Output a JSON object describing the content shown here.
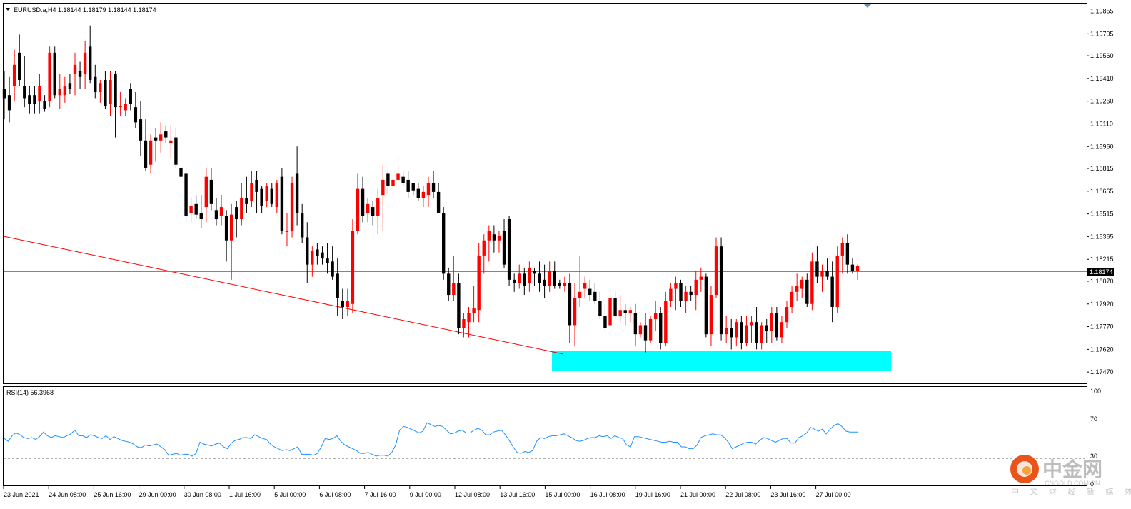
{
  "chart_data": {
    "type": "candlestick",
    "symbol_header": "EURUSD.a,H4  1.18144 1.18179 1.18144 1.18174",
    "current_price": "1.18174",
    "ylim": [
      1.174,
      1.199
    ],
    "y_ticks": [
      "1.19855",
      "1.19705",
      "1.19560",
      "1.19410",
      "1.19260",
      "1.19110",
      "1.18960",
      "1.18815",
      "1.18665",
      "1.18515",
      "1.18365",
      "1.18215",
      "1.18070",
      "1.17920",
      "1.17770",
      "1.17620",
      "1.17470"
    ],
    "x_ticks": [
      "23 Jun 2021",
      "24 Jun 08:00",
      "25 Jun 16:00",
      "29 Jun 00:00",
      "30 Jun 08:00",
      "1 Jul 16:00",
      "5 Jul 00:00",
      "6 Jul 08:00",
      "7 Jul 16:00",
      "9 Jul 00:00",
      "12 Jul 08:00",
      "13 Jul 16:00",
      "15 Jul 00:00",
      "16 Jul 08:00",
      "19 Jul 16:00",
      "21 Jul 00:00",
      "22 Jul 08:00",
      "23 Jul 16:00",
      "27 Jul 00:00"
    ],
    "colors": {
      "bull": "#ff0000",
      "bear": "#000000",
      "trendline": "#ff0000",
      "support_zone": "#00ffff",
      "rsi_line": "#1e90ff",
      "price_line": "#778899"
    },
    "candles": [
      [
        1.1934,
        1.1946,
        1.1914,
        1.1928
      ],
      [
        1.193,
        1.1942,
        1.1912,
        1.192
      ],
      [
        1.1936,
        1.196,
        1.1926,
        1.195
      ],
      [
        1.1958,
        1.197,
        1.1936,
        1.194
      ],
      [
        1.1936,
        1.1956,
        1.1922,
        1.1928
      ],
      [
        1.193,
        1.1936,
        1.1918,
        1.1924
      ],
      [
        1.193,
        1.1936,
        1.1918,
        1.1924
      ],
      [
        1.1926,
        1.1944,
        1.1918,
        1.1936
      ],
      [
        1.1926,
        1.193,
        1.1919,
        1.1921
      ],
      [
        1.1926,
        1.1962,
        1.1922,
        1.1958
      ],
      [
        1.1958,
        1.1962,
        1.1928,
        1.193
      ],
      [
        1.193,
        1.1944,
        1.1921,
        1.1934
      ],
      [
        1.193,
        1.1942,
        1.1925,
        1.1936
      ],
      [
        1.1938,
        1.1944,
        1.1931,
        1.1934
      ],
      [
        1.1944,
        1.1958,
        1.193,
        1.195
      ],
      [
        1.1946,
        1.1952,
        1.1934,
        1.1942
      ],
      [
        1.1944,
        1.1966,
        1.1934,
        1.1958
      ],
      [
        1.1962,
        1.1976,
        1.1938,
        1.194
      ],
      [
        1.1942,
        1.195,
        1.1928,
        1.1932
      ],
      [
        1.1932,
        1.194,
        1.1925,
        1.1938
      ],
      [
        1.194,
        1.1946,
        1.1921,
        1.1923
      ],
      [
        1.1924,
        1.1946,
        1.1916,
        1.194
      ],
      [
        1.1944,
        1.1946,
        1.1902,
        1.1922
      ],
      [
        1.1922,
        1.1932,
        1.1916,
        1.1923
      ],
      [
        1.192,
        1.1928,
        1.1916,
        1.1924
      ],
      [
        1.1934,
        1.1938,
        1.192,
        1.1924
      ],
      [
        1.1922,
        1.1932,
        1.1908,
        1.1912
      ],
      [
        1.1914,
        1.1926,
        1.189,
        1.19
      ],
      [
        1.19,
        1.1914,
        1.188,
        1.1882
      ],
      [
        1.1884,
        1.1904,
        1.1878,
        1.19
      ],
      [
        1.1902,
        1.1908,
        1.1886,
        1.19
      ],
      [
        1.19,
        1.1912,
        1.1892,
        1.1904
      ],
      [
        1.1906,
        1.191,
        1.1898,
        1.1902
      ],
      [
        1.1898,
        1.191,
        1.1888,
        1.19
      ],
      [
        1.1902,
        1.1908,
        1.1882,
        1.1884
      ],
      [
        1.1882,
        1.1888,
        1.1872,
        1.1876
      ],
      [
        1.1878,
        1.1882,
        1.1846,
        1.185
      ],
      [
        1.1852,
        1.1862,
        1.1846,
        1.1857
      ],
      [
        1.1858,
        1.1864,
        1.1848,
        1.1851
      ],
      [
        1.1852,
        1.1864,
        1.1842,
        1.1848
      ],
      [
        1.1856,
        1.1882,
        1.1846,
        1.1876
      ],
      [
        1.1874,
        1.1882,
        1.1854,
        1.1858
      ],
      [
        1.1854,
        1.1862,
        1.1844,
        1.1848
      ],
      [
        1.185,
        1.1864,
        1.1844,
        1.1856
      ],
      [
        1.185,
        1.1854,
        1.182,
        1.1834
      ],
      [
        1.1834,
        1.1858,
        1.1808,
        1.1851
      ],
      [
        1.1856,
        1.186,
        1.1836,
        1.1848
      ],
      [
        1.1848,
        1.1872,
        1.1844,
        1.1862
      ],
      [
        1.1862,
        1.1876,
        1.1852,
        1.1858
      ],
      [
        1.186,
        1.188,
        1.1856,
        1.1872
      ],
      [
        1.1874,
        1.188,
        1.1852,
        1.1866
      ],
      [
        1.1868,
        1.187,
        1.1852,
        1.1857
      ],
      [
        1.186,
        1.1872,
        1.1856,
        1.187
      ],
      [
        1.1868,
        1.1872,
        1.1856,
        1.1858
      ],
      [
        1.1856,
        1.1874,
        1.1852,
        1.1872
      ],
      [
        1.1876,
        1.1882,
        1.1838,
        1.184
      ],
      [
        1.184,
        1.1852,
        1.183,
        1.184
      ],
      [
        1.184,
        1.1876,
        1.1836,
        1.1872
      ],
      [
        1.1878,
        1.1896,
        1.1844,
        1.1852
      ],
      [
        1.1852,
        1.1858,
        1.1832,
        1.1836
      ],
      [
        1.1836,
        1.1846,
        1.1806,
        1.1818
      ],
      [
        1.1818,
        1.183,
        1.181,
        1.1827
      ],
      [
        1.1828,
        1.1832,
        1.1818,
        1.1824
      ],
      [
        1.1826,
        1.183,
        1.1818,
        1.1822
      ],
      [
        1.1822,
        1.1832,
        1.1812,
        1.1819
      ],
      [
        1.182,
        1.183,
        1.1808,
        1.181
      ],
      [
        1.1812,
        1.1822,
        1.1784,
        1.1796
      ],
      [
        1.1794,
        1.1802,
        1.1782,
        1.179
      ],
      [
        1.179,
        1.1802,
        1.1784,
        1.1794
      ],
      [
        1.1792,
        1.1848,
        1.1786,
        1.184
      ],
      [
        1.184,
        1.1878,
        1.1838,
        1.1868
      ],
      [
        1.1868,
        1.1876,
        1.1846,
        1.185
      ],
      [
        1.1852,
        1.1862,
        1.1846,
        1.1858
      ],
      [
        1.1856,
        1.186,
        1.1844,
        1.185
      ],
      [
        1.185,
        1.1868,
        1.1838,
        1.1862
      ],
      [
        1.1864,
        1.1884,
        1.184,
        1.1874
      ],
      [
        1.1878,
        1.188,
        1.1864,
        1.187
      ],
      [
        1.187,
        1.1876,
        1.1864,
        1.1874
      ],
      [
        1.1874,
        1.189,
        1.1868,
        1.1878
      ],
      [
        1.1876,
        1.188,
        1.187,
        1.1872
      ],
      [
        1.1874,
        1.188,
        1.1862,
        1.1866
      ],
      [
        1.1872,
        1.1872,
        1.1864,
        1.1867
      ],
      [
        1.1868,
        1.1872,
        1.186,
        1.1862
      ],
      [
        1.1862,
        1.187,
        1.1856,
        1.1866
      ],
      [
        1.1864,
        1.1876,
        1.1856,
        1.1872
      ],
      [
        1.1872,
        1.188,
        1.1862,
        1.1866
      ],
      [
        1.1866,
        1.1872,
        1.1852,
        1.1852
      ],
      [
        1.1852,
        1.1856,
        1.1808,
        1.1812
      ],
      [
        1.1812,
        1.1816,
        1.1794,
        1.1798
      ],
      [
        1.1798,
        1.1824,
        1.1794,
        1.1806
      ],
      [
        1.1806,
        1.1812,
        1.1772,
        1.1776
      ],
      [
        1.1776,
        1.1786,
        1.177,
        1.1782
      ],
      [
        1.178,
        1.179,
        1.177,
        1.1786
      ],
      [
        1.1786,
        1.1804,
        1.178,
        1.1789
      ],
      [
        1.1788,
        1.1832,
        1.178,
        1.1824
      ],
      [
        1.1824,
        1.1838,
        1.1812,
        1.1834
      ],
      [
        1.1834,
        1.1844,
        1.182,
        1.184
      ],
      [
        1.1838,
        1.1844,
        1.1826,
        1.1834
      ],
      [
        1.1834,
        1.184,
        1.1826,
        1.1837
      ],
      [
        1.184,
        1.1848,
        1.1816,
        1.1818
      ],
      [
        1.1848,
        1.185,
        1.1804,
        1.1808
      ],
      [
        1.1808,
        1.1812,
        1.18,
        1.1806
      ],
      [
        1.1806,
        1.1818,
        1.1802,
        1.1812
      ],
      [
        1.1812,
        1.1816,
        1.1798,
        1.1804
      ],
      [
        1.1806,
        1.182,
        1.18,
        1.1816
      ],
      [
        1.1814,
        1.1816,
        1.1804,
        1.1812
      ],
      [
        1.1812,
        1.182,
        1.18,
        1.1806
      ],
      [
        1.1808,
        1.1818,
        1.1796,
        1.1804
      ],
      [
        1.1804,
        1.182,
        1.18,
        1.1814
      ],
      [
        1.1814,
        1.182,
        1.1802,
        1.1804
      ],
      [
        1.1806,
        1.1808,
        1.1802,
        1.1804
      ],
      [
        1.1804,
        1.181,
        1.18,
        1.1806
      ],
      [
        1.1806,
        1.1812,
        1.1766,
        1.1778
      ],
      [
        1.1778,
        1.1806,
        1.1764,
        1.1796
      ],
      [
        1.1796,
        1.1824,
        1.179,
        1.18
      ],
      [
        1.1802,
        1.181,
        1.1796,
        1.1806
      ],
      [
        1.1802,
        1.1808,
        1.1794,
        1.1798
      ],
      [
        1.18,
        1.1806,
        1.1792,
        1.1794
      ],
      [
        1.1794,
        1.18,
        1.1782,
        1.1784
      ],
      [
        1.1784,
        1.1792,
        1.1774,
        1.1776
      ],
      [
        1.1778,
        1.1802,
        1.1772,
        1.1796
      ],
      [
        1.1796,
        1.18,
        1.1782,
        1.1784
      ],
      [
        1.1784,
        1.1798,
        1.178,
        1.1788
      ],
      [
        1.1788,
        1.1792,
        1.1778,
        1.1786
      ],
      [
        1.1786,
        1.179,
        1.178,
        1.1788
      ],
      [
        1.1786,
        1.1792,
        1.1764,
        1.1772
      ],
      [
        1.1772,
        1.178,
        1.177,
        1.1778
      ],
      [
        1.1778,
        1.1786,
        1.176,
        1.1768
      ],
      [
        1.1768,
        1.1784,
        1.1766,
        1.1782
      ],
      [
        1.1782,
        1.1794,
        1.1774,
        1.1786
      ],
      [
        1.1786,
        1.179,
        1.1762,
        1.1766
      ],
      [
        1.1766,
        1.18,
        1.1764,
        1.1794
      ],
      [
        1.1794,
        1.1806,
        1.179,
        1.1802
      ],
      [
        1.1802,
        1.181,
        1.1788,
        1.1806
      ],
      [
        1.1806,
        1.1808,
        1.179,
        1.1794
      ],
      [
        1.1794,
        1.1804,
        1.1786,
        1.18
      ],
      [
        1.18,
        1.1804,
        1.1794,
        1.1798
      ],
      [
        1.1798,
        1.1814,
        1.1788,
        1.1808
      ],
      [
        1.1808,
        1.1816,
        1.18,
        1.181
      ],
      [
        1.181,
        1.1812,
        1.177,
        1.1772
      ],
      [
        1.1772,
        1.1804,
        1.1764,
        1.1798
      ],
      [
        1.1798,
        1.1836,
        1.1796,
        1.183
      ],
      [
        1.183,
        1.1836,
        1.1768,
        1.1772
      ],
      [
        1.1772,
        1.1784,
        1.1766,
        1.1776
      ],
      [
        1.1776,
        1.1782,
        1.1762,
        1.177
      ],
      [
        1.177,
        1.1782,
        1.1764,
        1.178
      ],
      [
        1.178,
        1.1784,
        1.1762,
        1.1766
      ],
      [
        1.1766,
        1.1784,
        1.1764,
        1.1778
      ],
      [
        1.1778,
        1.1784,
        1.1766,
        1.178
      ],
      [
        1.178,
        1.179,
        1.1762,
        1.1766
      ],
      [
        1.1766,
        1.178,
        1.1762,
        1.1778
      ],
      [
        1.1778,
        1.1782,
        1.1766,
        1.1774
      ],
      [
        1.1774,
        1.179,
        1.1766,
        1.1786
      ],
      [
        1.1786,
        1.179,
        1.1768,
        1.177
      ],
      [
        1.177,
        1.1784,
        1.1766,
        1.178
      ],
      [
        1.178,
        1.1794,
        1.1776,
        1.179
      ],
      [
        1.179,
        1.1804,
        1.1786,
        1.18
      ],
      [
        1.18,
        1.1812,
        1.1794,
        1.1804
      ],
      [
        1.1802,
        1.181,
        1.1796,
        1.1808
      ],
      [
        1.1808,
        1.1812,
        1.179,
        1.1792
      ],
      [
        1.1792,
        1.1826,
        1.1788,
        1.182
      ],
      [
        1.182,
        1.183,
        1.1806,
        1.181
      ],
      [
        1.181,
        1.1818,
        1.18,
        1.1814
      ],
      [
        1.1814,
        1.1822,
        1.1808,
        1.181
      ],
      [
        1.181,
        1.182,
        1.178,
        1.179
      ],
      [
        1.179,
        1.183,
        1.1786,
        1.1824
      ],
      [
        1.1824,
        1.1836,
        1.1812,
        1.1832
      ],
      [
        1.1832,
        1.1838,
        1.1812,
        1.1818
      ],
      [
        1.1818,
        1.1822,
        1.1812,
        1.1814
      ],
      [
        1.1814,
        1.1818,
        1.1808,
        1.1817
      ]
    ],
    "rsi": {
      "label": "RSI(14) 56.3968",
      "ylim": [
        0,
        100
      ],
      "levels": [
        "100",
        "70",
        "30",
        "0"
      ],
      "values": [
        49,
        46,
        52,
        55,
        53,
        50,
        49,
        50,
        48,
        51,
        56,
        52,
        50,
        52,
        51,
        50,
        52,
        54,
        58,
        52,
        52,
        50,
        53,
        52,
        50,
        49,
        52,
        48,
        51,
        49,
        47,
        46,
        45,
        43,
        40,
        39,
        42,
        41,
        42,
        43,
        40,
        37,
        31,
        32,
        33,
        31,
        32,
        32,
        30,
        33,
        45,
        43,
        42,
        41,
        43,
        44,
        40,
        38,
        44,
        47,
        48,
        50,
        50,
        49,
        53,
        51,
        49,
        48,
        43,
        40,
        38,
        36,
        37,
        36,
        38,
        40,
        32,
        32,
        32,
        31,
        33,
        40,
        49,
        48,
        49,
        52,
        46,
        42,
        40,
        38,
        36,
        33,
        33,
        34,
        32,
        30,
        31,
        31,
        30,
        34,
        42,
        58,
        62,
        61,
        59,
        57,
        55,
        57,
        66,
        64,
        62,
        63,
        62,
        58,
        54,
        55,
        57,
        58,
        55,
        55,
        58,
        60,
        58,
        53,
        53,
        56,
        57,
        58,
        53,
        47,
        40,
        34,
        33,
        35,
        34,
        36,
        46,
        50,
        49,
        51,
        52,
        52,
        53,
        54,
        52,
        50,
        47,
        46,
        47,
        49,
        50,
        50,
        52,
        51,
        52,
        49,
        52,
        50,
        49,
        42,
        40,
        51,
        51,
        50,
        49,
        48,
        47,
        46,
        45,
        45,
        46,
        45,
        45,
        40,
        40,
        38,
        38,
        42,
        50,
        52,
        53,
        54,
        53,
        53,
        50,
        45,
        38,
        40,
        42,
        44,
        45,
        45,
        43,
        47,
        50,
        49,
        47,
        45,
        47,
        49,
        49,
        44,
        44,
        50,
        52,
        55,
        61,
        59,
        57,
        59,
        54,
        59,
        63,
        65,
        62,
        57,
        56,
        56,
        56
      ]
    }
  },
  "watermark": {
    "brand_cn": "中金网",
    "site": "CNGOLD.COM.CN",
    "tagline": "中 文 财 经 新 媒 体"
  }
}
